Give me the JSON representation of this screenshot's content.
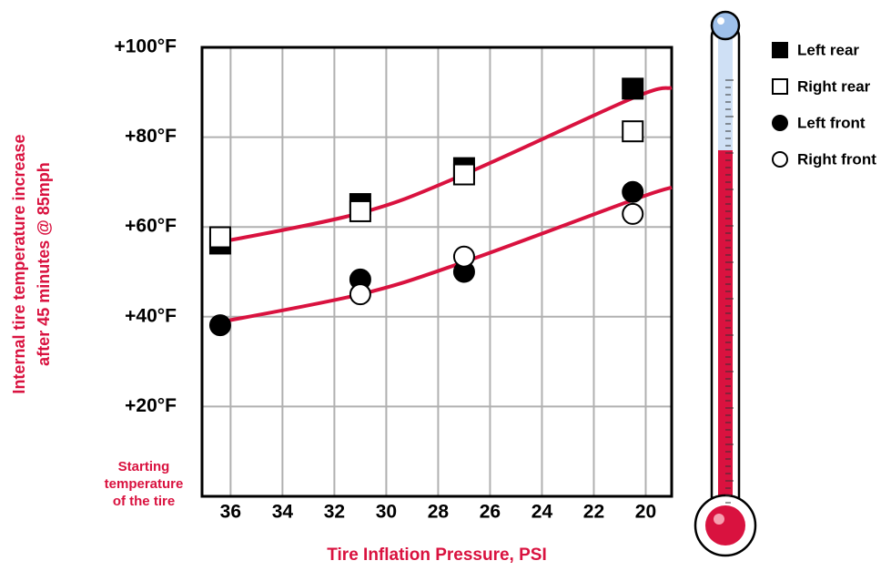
{
  "chart_data": {
    "type": "scatter",
    "y_label": [
      "Internal tire temperature increase",
      "after 45 minutes @ 85mph"
    ],
    "x_label": "Tire Inflation Pressure, PSI",
    "annotation": [
      "Starting",
      "temperature",
      "of the tire"
    ],
    "x": [
      36.4,
      31,
      27,
      20.5
    ],
    "series": [
      {
        "name": "Left rear",
        "color": "#000000",
        "marker": "square",
        "filled": true,
        "values": [
          56.3,
          65.1,
          73.1,
          90.8
        ]
      },
      {
        "name": "Right rear",
        "color": "#000000",
        "marker": "square",
        "filled": false,
        "values": [
          57.7,
          63.5,
          71.7,
          81.3
        ]
      },
      {
        "name": "Left front",
        "color": "#000000",
        "marker": "circle",
        "filled": true,
        "values": [
          38.1,
          48.3,
          50,
          67.8
        ]
      },
      {
        "name": "Right front",
        "color": "#000000",
        "marker": "circle",
        "filled": false,
        "values": [
          null,
          45,
          53.4,
          62.9
        ]
      }
    ],
    "curves": [
      {
        "color": "#d9123f",
        "x": [
          36.7,
          31,
          27,
          20.5,
          19
        ],
        "values": [
          56.3,
          63.1,
          71.7,
          88.7,
          91
        ]
      },
      {
        "color": "#d9123f",
        "x": [
          36.7,
          31,
          27,
          20.5,
          19
        ],
        "values": [
          38.5,
          45,
          52.2,
          66,
          68.8
        ]
      }
    ],
    "xlim": [
      37.1,
      19
    ],
    "ylim": [
      0,
      100
    ],
    "xticks": [
      36,
      34,
      32,
      30,
      28,
      26,
      24,
      22,
      20
    ],
    "yticks": [
      {
        "value": 20,
        "label": "+20°F"
      },
      {
        "value": 40,
        "label": "+40°F"
      },
      {
        "value": 60,
        "label": "+60°F"
      },
      {
        "value": 80,
        "label": "+80°F"
      },
      {
        "value": 100,
        "label": "+100°F"
      }
    ],
    "grid": true,
    "legend": "right"
  }
}
